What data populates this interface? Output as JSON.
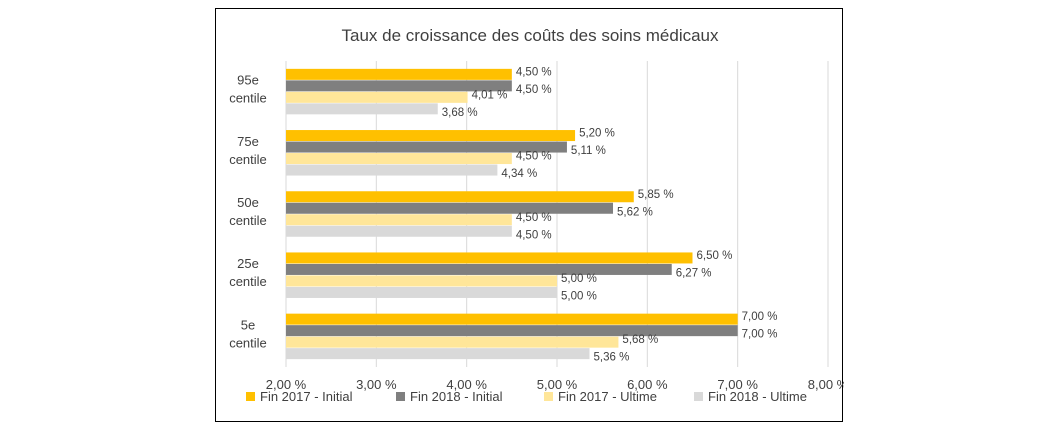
{
  "chart_data": {
    "type": "bar",
    "orientation": "horizontal",
    "title": "Taux de croissance des coûts des soins médicaux",
    "xlabel": "",
    "ylabel": "",
    "xlim": [
      2.0,
      8.0
    ],
    "xticks": [
      2.0,
      3.0,
      4.0,
      5.0,
      6.0,
      7.0,
      8.0
    ],
    "xtick_labels": [
      "2,00 %",
      "3,00 %",
      "4,00 %",
      "5,00 %",
      "6,00 %",
      "7,00 %",
      "8,00 %"
    ],
    "grid": "vertical",
    "legend_position": "bottom",
    "categories": [
      [
        "95e",
        "centile"
      ],
      [
        "75e",
        "centile"
      ],
      [
        "50e",
        "centile"
      ],
      [
        "25e",
        "centile"
      ],
      [
        "5e",
        "centile"
      ]
    ],
    "series": [
      {
        "name": "Fin 2017 - Initial",
        "color": "#FFC000",
        "values": [
          4.5,
          5.2,
          5.85,
          6.5,
          7.0
        ],
        "labels": [
          "4,50 %",
          "5,20 %",
          "5,85 %",
          "6,50 %",
          "7,00 %"
        ]
      },
      {
        "name": "Fin 2018 - Initial",
        "color": "#7F7F7F",
        "values": [
          4.5,
          5.11,
          5.62,
          6.27,
          7.0
        ],
        "labels": [
          "4,50 %",
          "5,11 %",
          "5,62 %",
          "6,27 %",
          "7,00 %"
        ]
      },
      {
        "name": "Fin 2017 - Ultime",
        "color": "#FFE699",
        "values": [
          4.01,
          4.5,
          4.5,
          5.0,
          5.68
        ],
        "labels": [
          "4,01 %",
          "4,50 %",
          "4,50 %",
          "5,00 %",
          "5,68 %"
        ]
      },
      {
        "name": "Fin 2018 - Ultime",
        "color": "#D9D9D9",
        "values": [
          3.68,
          4.34,
          4.5,
          5.0,
          5.36
        ],
        "labels": [
          "3,68 %",
          "4,34 %",
          "4,50 %",
          "5,00 %",
          "5,36 %"
        ]
      }
    ]
  }
}
